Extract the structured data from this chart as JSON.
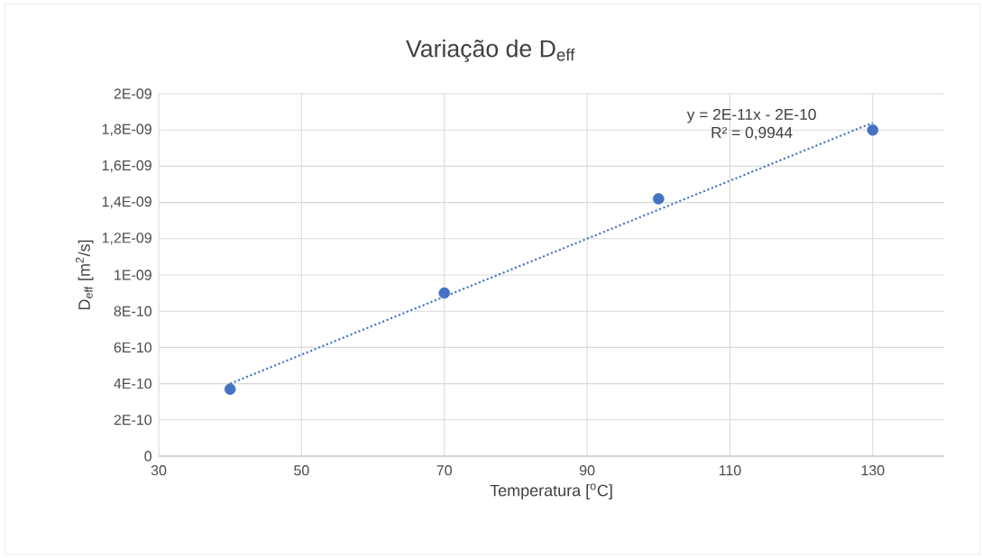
{
  "chart_data": {
    "type": "scatter",
    "title": "Variação de D$_{eff}$",
    "xlabel": "Temperatura [$^{o}$C]",
    "ylabel": "D$_{eff}$ [m$^{2}$/s]",
    "annotations": [
      "y = 2E-11x - 2E-10",
      "R² = 0,9944"
    ],
    "x": [
      40,
      70,
      100,
      130
    ],
    "series": [
      {
        "color": "#4472c4",
        "values": [
          3.7e-10,
          9e-10,
          1.42e-09,
          1.8e-09
        ],
        "marker": "circle"
      },
      {
        "type": "line",
        "color": "#4472c4",
        "x": [
          40,
          130
        ],
        "values": [
          4e-10,
          1.84e-09
        ],
        "line_style": "dotted",
        "marker": "none"
      }
    ],
    "xlim": [
      30,
      140
    ],
    "xticks": [
      30,
      50,
      70,
      90,
      110,
      130
    ],
    "ylim": [
      0,
      2e-09
    ],
    "yticks": [
      0,
      {
        "value": 2e-10,
        "label": "2E-10"
      },
      {
        "value": 4e-10,
        "label": "4E-10"
      },
      {
        "value": 6e-10,
        "label": "6E-10"
      },
      {
        "value": 8e-10,
        "label": "8E-10"
      },
      {
        "value": 1e-09,
        "label": "1E-09"
      },
      {
        "value": 1.2e-09,
        "label": "1,2E-09"
      },
      {
        "value": 1.4e-09,
        "label": "1,4E-09"
      },
      {
        "value": 1.6e-09,
        "label": "1,6E-09"
      },
      {
        "value": 1.8e-09,
        "label": "1,8E-09"
      },
      {
        "value": 2e-09,
        "label": "2E-09"
      }
    ],
    "grid": true,
    "legend": false
  }
}
